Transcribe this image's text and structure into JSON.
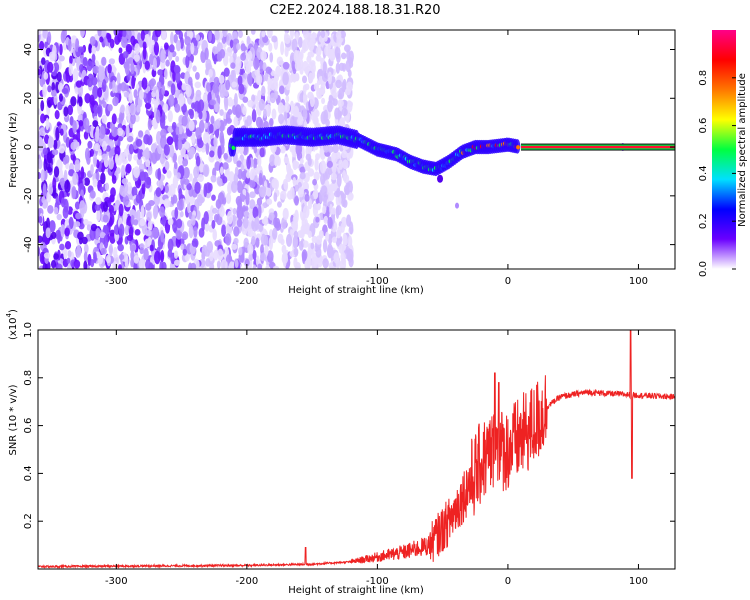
{
  "title": "C2E2.2024.188.18.31.R20",
  "chart_data": [
    {
      "type": "heatmap",
      "name": "spectrogram",
      "xlabel": "Height of straight line (km)",
      "ylabel": "Frequency (Hz)",
      "xlim": [
        -360,
        128
      ],
      "ylim": [
        -50,
        48
      ],
      "xticks": [
        -300,
        -200,
        -100,
        0,
        100
      ],
      "yticks": [
        -40,
        -20,
        0,
        20,
        40
      ],
      "colorbar": {
        "label": "Normalized spectral amplitude",
        "range": [
          0,
          1
        ],
        "ticks": [
          0.0,
          0.2,
          0.4,
          0.6,
          0.8
        ],
        "tick_labels": [
          "0.0",
          "0.2",
          "0.4",
          "0.6",
          "0.8"
        ],
        "colormap": [
          "#ffffff",
          "#6a00ff",
          "#0000ff",
          "#00e0ff",
          "#00ff40",
          "#ffff00",
          "#ff7700",
          "#ff0000",
          "#ff0088"
        ]
      },
      "noise_extent_x": [
        -360,
        -120
      ],
      "signal_trace": [
        {
          "x": -210,
          "y": 4
        },
        {
          "x": -190,
          "y": 4
        },
        {
          "x": -170,
          "y": 5
        },
        {
          "x": -150,
          "y": 4
        },
        {
          "x": -130,
          "y": 5
        },
        {
          "x": -115,
          "y": 3
        },
        {
          "x": -100,
          "y": -1
        },
        {
          "x": -85,
          "y": -3
        },
        {
          "x": -75,
          "y": -6
        },
        {
          "x": -65,
          "y": -8
        },
        {
          "x": -55,
          "y": -9
        },
        {
          "x": -45,
          "y": -6
        },
        {
          "x": -35,
          "y": -2
        },
        {
          "x": -25,
          "y": 0
        },
        {
          "x": -15,
          "y": 0
        },
        {
          "x": 0,
          "y": 1
        },
        {
          "x": 10,
          "y": 0
        },
        {
          "x": 128,
          "y": 0
        }
      ],
      "carrier_line_y": 0
    },
    {
      "type": "line",
      "name": "snr",
      "xlabel": "Height of straight line (km)",
      "ylabel": "SNR (10 * v/v)",
      "y_multiplier": "(x10",
      "y_multiplier_exp": "4",
      "y_multiplier_close": ")",
      "xlim": [
        -360,
        128
      ],
      "ylim": [
        0,
        1.0
      ],
      "xticks": [
        -300,
        -200,
        -100,
        0,
        100
      ],
      "yticks": [
        0.2,
        0.4,
        0.6,
        0.8,
        1.0
      ],
      "ytick_labels": [
        "0.2",
        "0.4",
        "0.6",
        "0.8",
        "1.0"
      ],
      "color": "#ee2222",
      "series_envelope": [
        {
          "x": -360,
          "y": 0.01
        },
        {
          "x": -200,
          "y": 0.015
        },
        {
          "x": -150,
          "y": 0.02
        },
        {
          "x": -120,
          "y": 0.03
        },
        {
          "x": -100,
          "y": 0.05
        },
        {
          "x": -80,
          "y": 0.07
        },
        {
          "x": -60,
          "y": 0.1
        },
        {
          "x": -45,
          "y": 0.2
        },
        {
          "x": -30,
          "y": 0.35
        },
        {
          "x": -20,
          "y": 0.45
        },
        {
          "x": -10,
          "y": 0.5
        },
        {
          "x": 0,
          "y": 0.5
        },
        {
          "x": 10,
          "y": 0.55
        },
        {
          "x": 20,
          "y": 0.6
        },
        {
          "x": 30,
          "y": 0.68
        },
        {
          "x": 40,
          "y": 0.72
        },
        {
          "x": 60,
          "y": 0.74
        },
        {
          "x": 90,
          "y": 0.73
        },
        {
          "x": 128,
          "y": 0.72
        }
      ],
      "spikes": [
        {
          "x": -155,
          "y": 0.09
        },
        {
          "x": -10,
          "y": 0.82
        },
        {
          "x": -7,
          "y": 0.78
        },
        {
          "x": 94,
          "y": 1.0
        },
        {
          "x": 95,
          "y": 0.38
        }
      ]
    }
  ]
}
